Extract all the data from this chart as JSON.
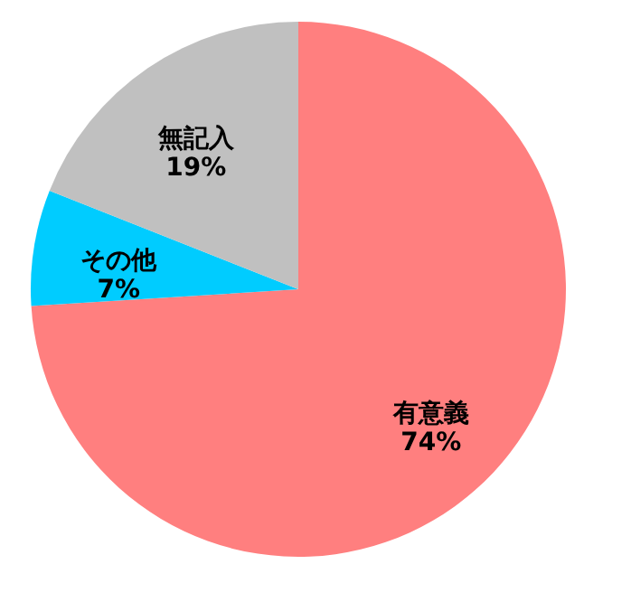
{
  "chart_data": {
    "type": "pie",
    "categories": [
      "有意義",
      "その他",
      "無記入"
    ],
    "values": [
      74,
      7,
      19
    ],
    "value_labels": [
      "74%",
      "7%",
      "19%"
    ],
    "colors": [
      "#ff7f7f",
      "#00ccff",
      "#c0c0c0"
    ],
    "legend": false
  }
}
